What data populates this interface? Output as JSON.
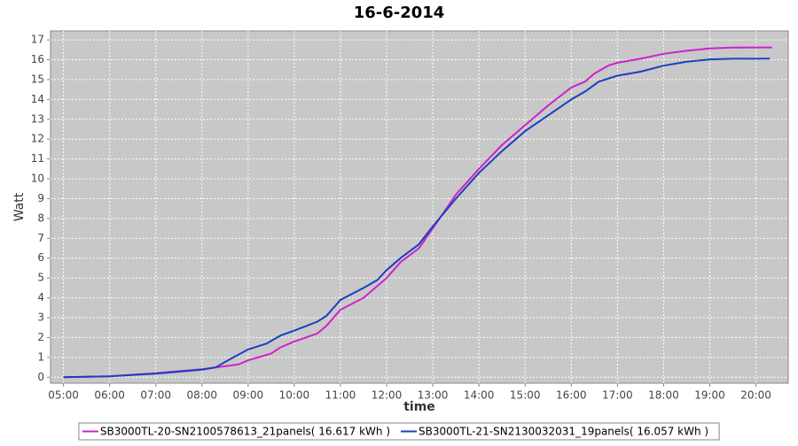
{
  "chart_data": {
    "type": "line",
    "title": "16-6-2014",
    "x_label": "time",
    "y_label": "Watt",
    "grid": true,
    "legend": "bottom",
    "xlim": [
      4.72,
      20.7
    ],
    "ylim": [
      -0.3,
      17.45
    ],
    "xticks": [
      {
        "value": 5,
        "label": "05:00"
      },
      {
        "value": 6,
        "label": "06:00"
      },
      {
        "value": 7,
        "label": "07:00"
      },
      {
        "value": 8,
        "label": "08:00"
      },
      {
        "value": 9,
        "label": "09:00"
      },
      {
        "value": 10,
        "label": "10:00"
      },
      {
        "value": 11,
        "label": "11:00"
      },
      {
        "value": 12,
        "label": "12:00"
      },
      {
        "value": 13,
        "label": "13:00"
      },
      {
        "value": 14,
        "label": "14:00"
      },
      {
        "value": 15,
        "label": "15:00"
      },
      {
        "value": 16,
        "label": "16:00"
      },
      {
        "value": 17,
        "label": "17:00"
      },
      {
        "value": 18,
        "label": "18:00"
      },
      {
        "value": 19,
        "label": "19:00"
      },
      {
        "value": 20,
        "label": "20:00"
      }
    ],
    "yticks": [
      0,
      1,
      2,
      3,
      4,
      5,
      6,
      7,
      8,
      9,
      10,
      11,
      12,
      13,
      14,
      15,
      16,
      17
    ],
    "series": [
      {
        "name": "SB3000TL-20-SN2100578613_21panels( 16.617 kWh )",
        "color": "#cc22cc",
        "x": [
          5,
          6,
          7,
          8,
          8.5,
          8.8,
          9,
          9.5,
          9.7,
          10,
          10.5,
          10.7,
          11,
          11.5,
          12,
          12.3,
          12.7,
          13,
          13.5,
          14,
          14.5,
          15,
          15.5,
          16,
          16.3,
          16.5,
          16.8,
          17,
          17.5,
          18,
          18.5,
          19,
          19.5,
          20,
          20.35
        ],
        "values": [
          0,
          0.05,
          0.2,
          0.4,
          0.55,
          0.65,
          0.85,
          1.2,
          1.5,
          1.8,
          2.2,
          2.6,
          3.4,
          4.0,
          5.0,
          5.8,
          6.5,
          7.5,
          9.2,
          10.5,
          11.7,
          12.7,
          13.7,
          14.6,
          14.9,
          15.3,
          15.7,
          15.85,
          16.05,
          16.3,
          16.45,
          16.57,
          16.61,
          16.62,
          16.62
        ]
      },
      {
        "name": "SB3000TL-21-SN2130032031_19panels( 16.057 kWh )",
        "color": "#1a3fbf",
        "x": [
          5,
          6,
          7,
          8,
          8.3,
          8.6,
          9,
          9.4,
          9.7,
          10,
          10.5,
          10.7,
          11,
          11.5,
          11.8,
          12,
          12.3,
          12.7,
          13,
          13.5,
          14,
          14.5,
          15,
          15.5,
          16,
          16.3,
          16.6,
          17,
          17.5,
          18,
          18.5,
          19,
          19.5,
          20,
          20.3
        ],
        "values": [
          0,
          0.05,
          0.18,
          0.38,
          0.5,
          0.9,
          1.4,
          1.7,
          2.1,
          2.35,
          2.8,
          3.1,
          3.9,
          4.5,
          4.9,
          5.4,
          6.0,
          6.7,
          7.6,
          9.0,
          10.3,
          11.4,
          12.4,
          13.2,
          14.0,
          14.4,
          14.9,
          15.2,
          15.4,
          15.7,
          15.9,
          16.02,
          16.05,
          16.05,
          16.06
        ]
      }
    ]
  }
}
